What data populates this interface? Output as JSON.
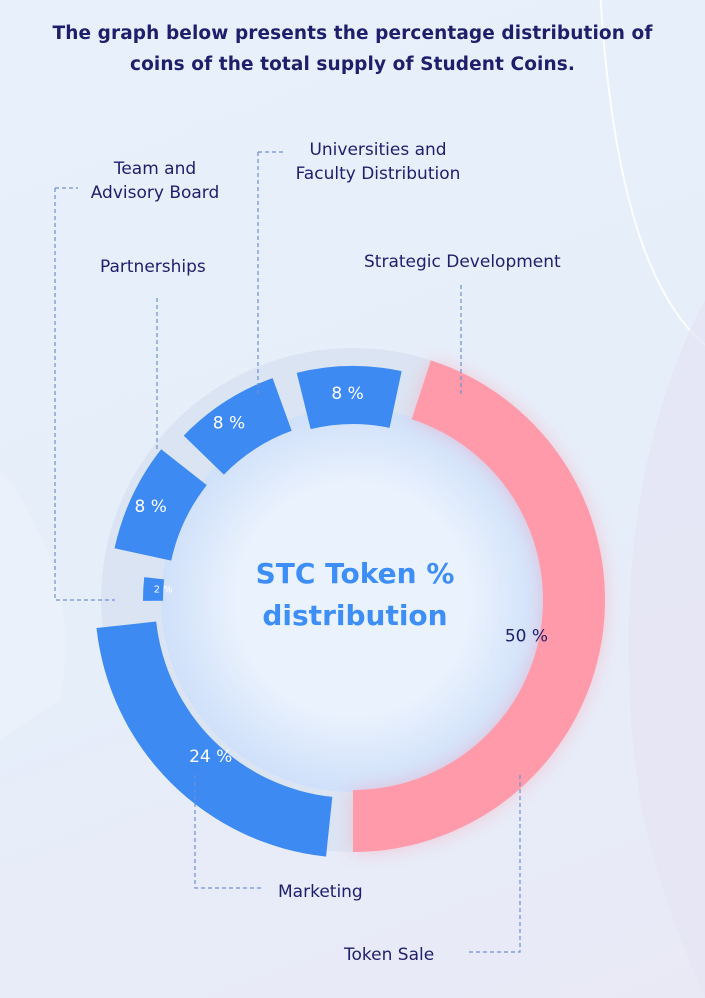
{
  "heading": {
    "line1": "The graph below presents the percentage distribution of",
    "line2": "coins of the total supply of Student Coins."
  },
  "chart_data": {
    "type": "pie",
    "donut": true,
    "center_title": [
      "STC Token %",
      "distribution"
    ],
    "slices": [
      {
        "label": "Token Sale",
        "value": 50,
        "value_label": "50 %",
        "color": "#ff9aab"
      },
      {
        "label": "Strategic Development",
        "value": 24,
        "value_label": "24 %",
        "color": "#3d8af3"
      },
      {
        "label": "Universities and Faculty Distribution",
        "value": 2,
        "value_label": "2 %",
        "color": "#3d8af3"
      },
      {
        "label": "Partnerships",
        "value": 8,
        "value_label": "8 %",
        "color": "#3d8af3"
      },
      {
        "label": "Team and Advisory Board",
        "value": 8,
        "value_label": "8 %",
        "color": "#3d8af3"
      },
      {
        "label": "Marketing",
        "value": 8,
        "value_label": "8 %",
        "color": "#3d8af3"
      }
    ],
    "legend_labels": {
      "universities_line1": "Universities and",
      "universities_line2": "Faculty Distribution",
      "team_line1": "Team and",
      "team_line2": "Advisory Board",
      "partnerships": "Partnerships",
      "strategic": "Strategic Development",
      "marketing": "Marketing",
      "token_sale": "Token Sale"
    }
  },
  "colors": {
    "blue": "#3d8af3",
    "pink": "#ff9aab",
    "navy": "#1d1f6b",
    "leader": "#6f8fd6"
  }
}
